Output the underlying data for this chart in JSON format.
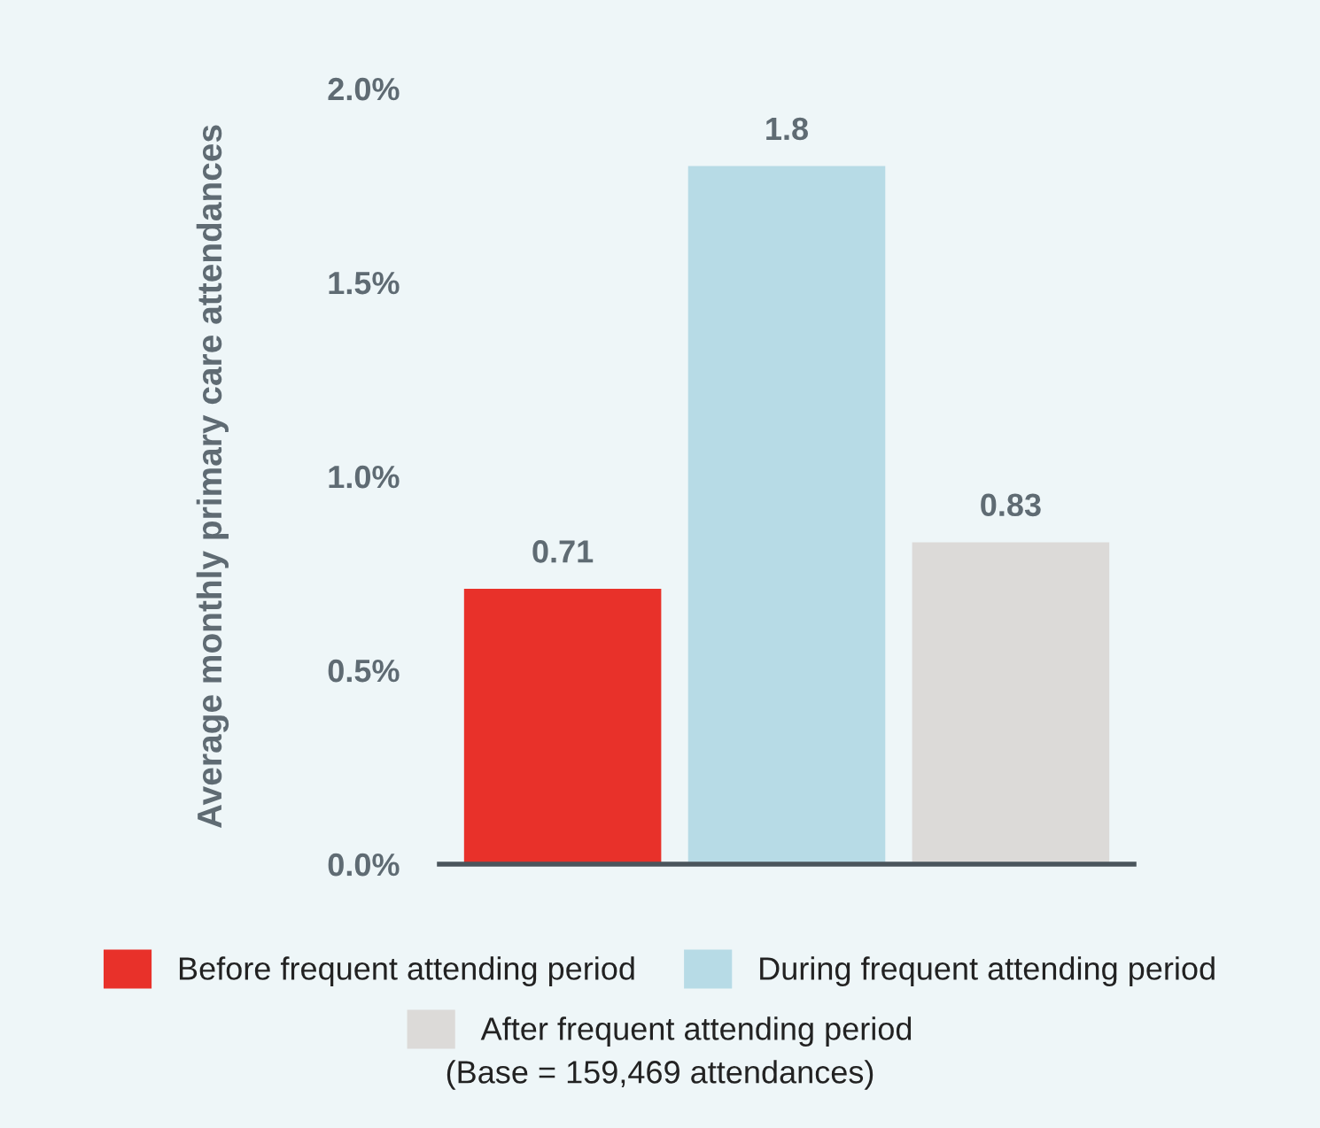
{
  "chart_data": {
    "type": "bar",
    "ylabel": "Average monthly primary care attendances",
    "categories": [
      null,
      null,
      null
    ],
    "series": [
      {
        "name": "Before frequent attending period",
        "color": "#e8312a",
        "values": [
          0.71,
          null,
          null
        ]
      },
      {
        "name": "During frequent attending period",
        "color": "#b7dbe6",
        "values": [
          null,
          1.8,
          null
        ]
      },
      {
        "name": "After frequent attending period",
        "color": "#dcdad8",
        "values": [
          null,
          null,
          0.83
        ]
      }
    ],
    "ylim": [
      0,
      2.0
    ],
    "yticks": [
      {
        "value": 0,
        "label": "0.0%"
      },
      {
        "value": 0.5,
        "label": "0.5%"
      },
      {
        "value": 1.0,
        "label": "1.0%"
      },
      {
        "value": 1.5,
        "label": "1.5%"
      },
      {
        "value": 2.0,
        "label": "2.0%"
      }
    ],
    "data_labels": true,
    "tick_labels": "y",
    "legend": "bottom",
    "annotations": [
      "(Base = 159,469 attendances)"
    ]
  }
}
